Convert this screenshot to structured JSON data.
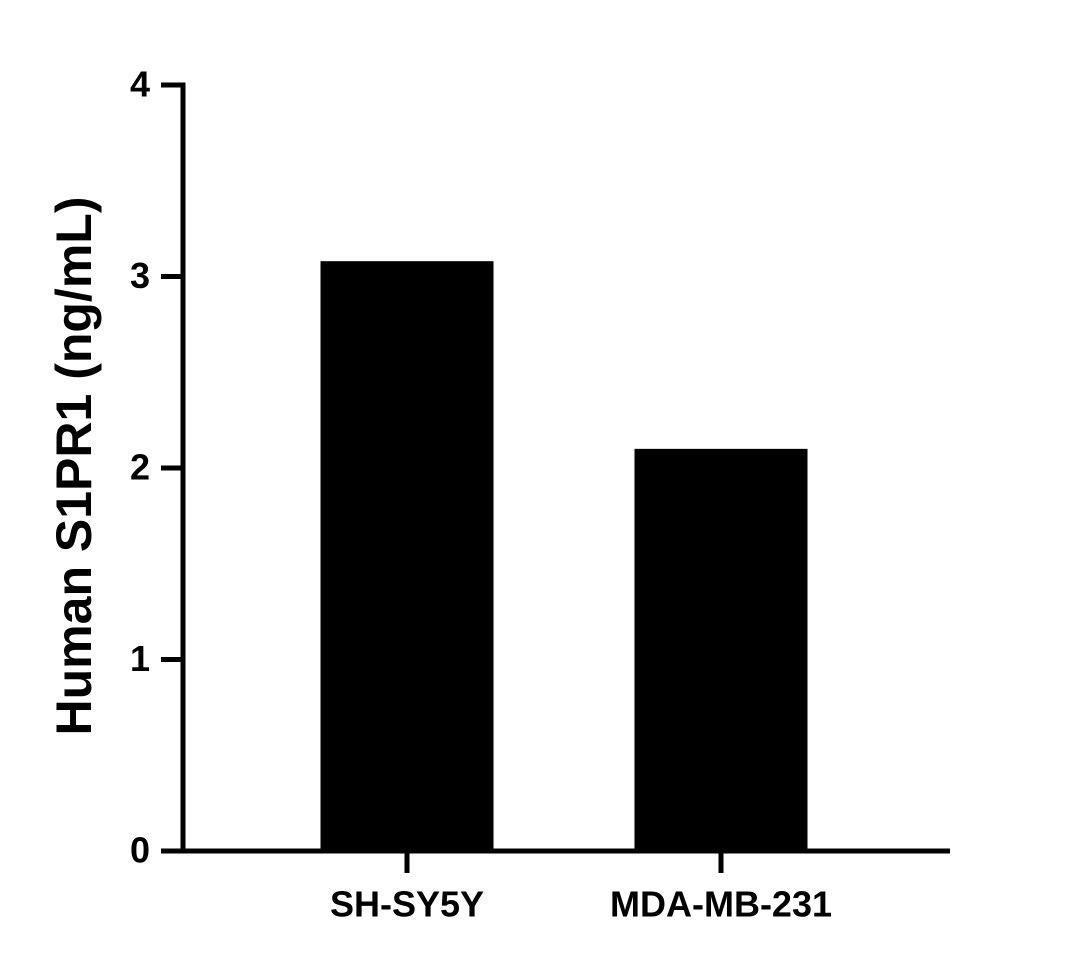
{
  "chart_data": {
    "type": "bar",
    "y_label": "Human S1PR1 (ng/mL)",
    "categories": [
      "SH-SY5Y",
      "MDA-MB-231"
    ],
    "values": [
      3.08,
      2.1
    ],
    "color": "#000000",
    "ylim": [
      0,
      4
    ],
    "yticks": [
      0,
      1,
      2,
      3,
      4
    ],
    "grid": false
  }
}
